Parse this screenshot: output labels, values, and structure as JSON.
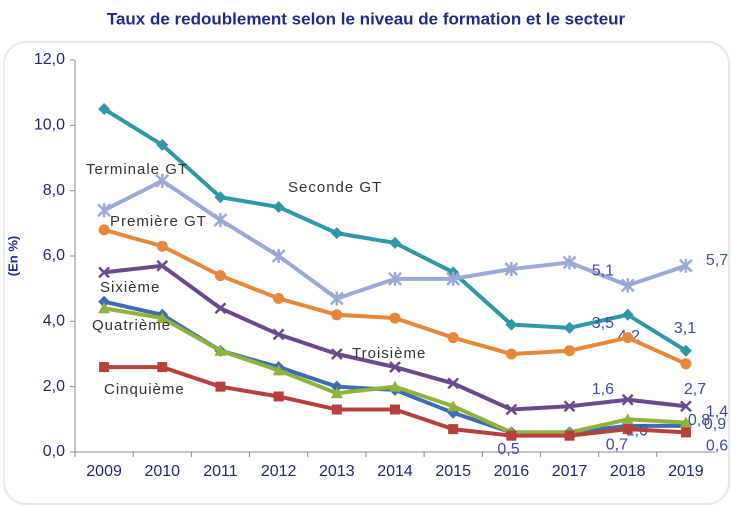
{
  "chart_data": {
    "type": "line",
    "title": "Taux de redoublement selon le niveau de formation et le secteur",
    "y_label": "(En %)",
    "categories": [
      "2009",
      "2010",
      "2011",
      "2012",
      "2013",
      "2014",
      "2015",
      "2016",
      "2017",
      "2018",
      "2019"
    ],
    "ylim": [
      0,
      12
    ],
    "yticks": [
      {
        "value": 0,
        "label": "0,0"
      },
      {
        "value": 2,
        "label": "2,0"
      },
      {
        "value": 4,
        "label": "4,0"
      },
      {
        "value": 6,
        "label": "6,0"
      },
      {
        "value": 8,
        "label": "8,0"
      },
      {
        "value": 10,
        "label": "10,0"
      },
      {
        "value": 12,
        "label": "12,0"
      }
    ],
    "grid": false,
    "series": [
      {
        "name": "Seconde GT",
        "color": "#2f98a8",
        "marker": "diamond",
        "values": [
          10.5,
          9.4,
          7.8,
          7.5,
          6.7,
          6.4,
          5.5,
          3.9,
          3.8,
          4.2,
          3.1
        ],
        "value_labels": [
          null,
          null,
          null,
          null,
          null,
          null,
          null,
          null,
          null,
          "4,2",
          "3,1"
        ]
      },
      {
        "name": "Terminale GT",
        "color": "#9ba9d6",
        "marker": "star",
        "values": [
          7.4,
          8.3,
          7.1,
          6.0,
          4.7,
          5.3,
          5.3,
          5.6,
          5.8,
          5.1,
          5.7
        ],
        "value_labels": [
          null,
          null,
          null,
          null,
          null,
          null,
          null,
          null,
          null,
          "5,1",
          "5,7"
        ]
      },
      {
        "name": "Première GT",
        "color": "#e8863a",
        "marker": "circle",
        "values": [
          6.8,
          6.3,
          5.4,
          4.7,
          4.2,
          4.1,
          3.5,
          3.0,
          3.1,
          3.5,
          2.7
        ],
        "value_labels": [
          null,
          null,
          null,
          null,
          null,
          null,
          null,
          null,
          null,
          "3,5",
          "2,7"
        ]
      },
      {
        "name": "Sixième",
        "color": "#3f6db3",
        "marker": "diamond",
        "values": [
          4.6,
          4.2,
          3.1,
          2.6,
          2.0,
          1.9,
          1.2,
          0.6,
          0.6,
          0.8,
          0.8
        ],
        "value_labels": [
          null,
          null,
          null,
          null,
          null,
          null,
          null,
          null,
          null,
          null,
          "0,8"
        ]
      },
      {
        "name": "Quatrième",
        "color": "#8fb33a",
        "marker": "triangle",
        "values": [
          4.4,
          4.1,
          3.1,
          2.5,
          1.8,
          2.0,
          1.4,
          0.6,
          0.6,
          1.0,
          0.9
        ],
        "value_labels": [
          null,
          null,
          null,
          null,
          null,
          null,
          null,
          null,
          null,
          "1,0",
          "0,9"
        ]
      },
      {
        "name": "Troisième",
        "color": "#6a4a8c",
        "marker": "x",
        "values": [
          5.5,
          5.7,
          4.4,
          3.6,
          3.0,
          2.6,
          2.1,
          1.3,
          1.4,
          1.6,
          1.4
        ],
        "value_labels": [
          null,
          null,
          null,
          null,
          null,
          null,
          null,
          null,
          null,
          "1,6",
          "1,4"
        ]
      },
      {
        "name": "Cinquième",
        "color": "#b8403c",
        "marker": "square",
        "values": [
          2.6,
          2.6,
          2.0,
          1.7,
          1.3,
          1.3,
          0.7,
          0.5,
          0.5,
          0.7,
          0.6
        ],
        "value_labels": [
          null,
          null,
          null,
          null,
          null,
          null,
          null,
          "0,5",
          null,
          "0,7",
          "0,6"
        ]
      }
    ]
  }
}
